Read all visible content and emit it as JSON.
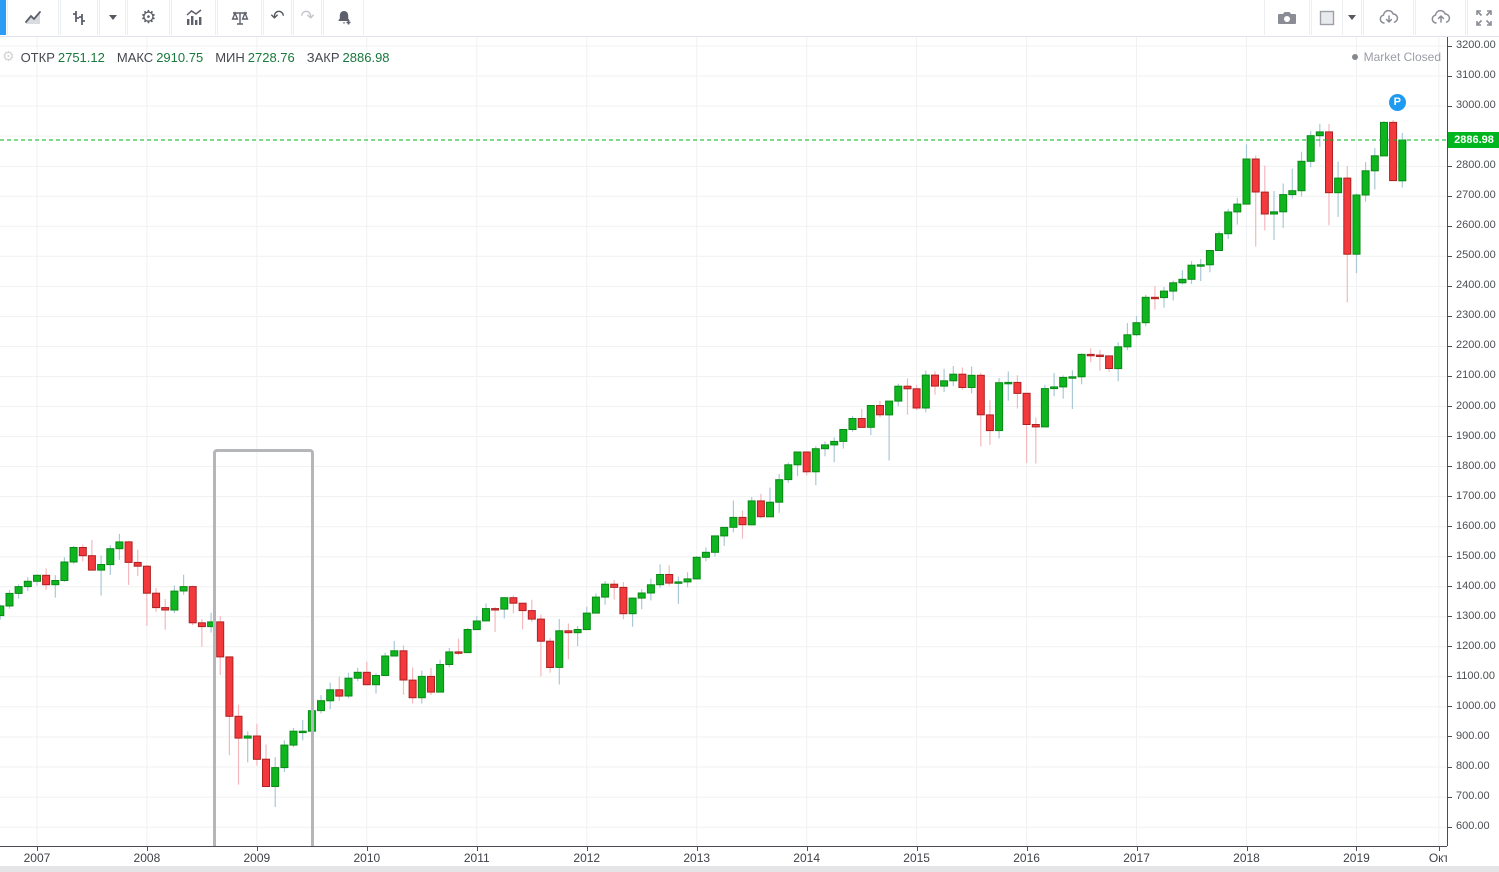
{
  "toolbar": {
    "icons": [
      "symbol",
      "line-chart",
      "chart-style",
      "style-dropdown",
      "settings",
      "indicators",
      "compare",
      "undo",
      "redo",
      "alert",
      "screenshot",
      "layout",
      "layout-dropdown",
      "cloud-load",
      "cloud-save",
      "fullscreen"
    ]
  },
  "legend": {
    "items": [
      {
        "label": "ОТКР",
        "value": "2751.12"
      },
      {
        "label": "МАКС",
        "value": "2910.75"
      },
      {
        "label": "МИН",
        "value": "2728.76"
      },
      {
        "label": "ЗАКР",
        "value": "2886.98"
      }
    ]
  },
  "status": {
    "market_closed": "Market Closed"
  },
  "price_axis": {
    "ticks": [
      "3200.00",
      "3100.00",
      "3000.00",
      "2900.00",
      "2800.00",
      "2700.00",
      "2600.00",
      "2500.00",
      "2400.00",
      "2300.00",
      "2200.00",
      "2100.00",
      "2000.00",
      "1900.00",
      "1800.00",
      "1700.00",
      "1600.00",
      "1500.00",
      "1400.00",
      "1300.00",
      "1200.00",
      "1100.00",
      "1000.00",
      "900.00",
      "800.00",
      "700.00",
      "600.00"
    ],
    "current_price_label": "2886.98"
  },
  "time_axis": {
    "ticks": [
      {
        "label": "2007",
        "m": 4
      },
      {
        "label": "2008",
        "m": 16
      },
      {
        "label": "2009",
        "m": 28
      },
      {
        "label": "2010",
        "m": 40
      },
      {
        "label": "2011",
        "m": 52
      },
      {
        "label": "2012",
        "m": 64
      },
      {
        "label": "2013",
        "m": 76
      },
      {
        "label": "2014",
        "m": 88
      },
      {
        "label": "2015",
        "m": 100
      },
      {
        "label": "2016",
        "m": 112
      },
      {
        "label": "2017",
        "m": 124
      },
      {
        "label": "2018",
        "m": 136
      },
      {
        "label": "2019",
        "m": 148
      },
      {
        "label": "Окт",
        "m": 157
      }
    ]
  },
  "colors": {
    "up": "#0eb51e",
    "up_border": "#098a16",
    "up_wick": "#a9c9d6",
    "down": "#f4393d",
    "down_border": "#ad2122",
    "down_wick": "#f5b8bc",
    "price_line": "#00b61e",
    "price_label_bg": "#00b61e",
    "grid": "#f0f1f2",
    "axis_line": "#4a4d57",
    "marker_blue": "#1e9bf0"
  },
  "annotations": {
    "selection_box": {
      "time_start": "2008-08",
      "time_end": "2009-07",
      "price_top": 1858,
      "price_bottom": 497
    },
    "marker": {
      "label": "P",
      "time": "2019-06",
      "price": 3012
    }
  },
  "chart_data": {
    "type": "candlestick",
    "interval": "1M",
    "ylim": [
      600,
      3200
    ],
    "grid": true,
    "current_price": 2886.98,
    "ohlc_legend": {
      "open": 2751.12,
      "high": 2910.75,
      "low": 2728.76,
      "close": 2886.98
    },
    "candles": [
      [
        "2006-09",
        1303.8,
        1340.3,
        1290.9,
        1335.9
      ],
      [
        "2006-10",
        1335.9,
        1389.5,
        1327.1,
        1377.9
      ],
      [
        "2006-11",
        1377.9,
        1407.9,
        1360.3,
        1400.6
      ],
      [
        "2006-12",
        1400.6,
        1431.8,
        1385.9,
        1418.3
      ],
      [
        "2007-01",
        1418.3,
        1441.6,
        1403.4,
        1438.2
      ],
      [
        "2007-02",
        1438.2,
        1461.6,
        1389.4,
        1406.8
      ],
      [
        "2007-03",
        1406.8,
        1438.9,
        1363.9,
        1420.9
      ],
      [
        "2007-04",
        1420.9,
        1498.0,
        1416.4,
        1482.4
      ],
      [
        "2007-05",
        1482.4,
        1535.6,
        1476.7,
        1530.6
      ],
      [
        "2007-06",
        1530.6,
        1540.6,
        1484.2,
        1503.3
      ],
      [
        "2007-07",
        1503.3,
        1555.9,
        1454.3,
        1455.3
      ],
      [
        "2007-08",
        1455.3,
        1503.9,
        1370.6,
        1474.0
      ],
      [
        "2007-09",
        1474.0,
        1538.7,
        1439.3,
        1526.8
      ],
      [
        "2007-10",
        1526.8,
        1576.1,
        1489.6,
        1549.4
      ],
      [
        "2007-11",
        1549.4,
        1552.8,
        1406.1,
        1481.1
      ],
      [
        "2007-12",
        1481.1,
        1523.6,
        1435.6,
        1468.4
      ],
      [
        "2008-01",
        1468.4,
        1471.8,
        1270.0,
        1378.6
      ],
      [
        "2008-02",
        1378.6,
        1396.0,
        1316.8,
        1330.6
      ],
      [
        "2008-03",
        1330.6,
        1359.7,
        1256.9,
        1322.7
      ],
      [
        "2008-04",
        1322.7,
        1404.6,
        1312.8,
        1385.6
      ],
      [
        "2008-05",
        1385.6,
        1440.2,
        1373.1,
        1400.4
      ],
      [
        "2008-06",
        1400.4,
        1404.0,
        1272.0,
        1280.0
      ],
      [
        "2008-07",
        1280.0,
        1292.2,
        1200.4,
        1267.4
      ],
      [
        "2008-08",
        1267.4,
        1313.2,
        1247.4,
        1283.0
      ],
      [
        "2008-09",
        1283.0,
        1303.0,
        1106.4,
        1166.4
      ],
      [
        "2008-10",
        1166.4,
        1167.0,
        839.8,
        968.8
      ],
      [
        "2008-11",
        968.8,
        1007.5,
        741.0,
        896.2
      ],
      [
        "2008-12",
        896.2,
        918.9,
        815.7,
        903.3
      ],
      [
        "2009-01",
        903.3,
        943.9,
        804.3,
        825.9
      ],
      [
        "2009-02",
        825.9,
        875.0,
        734.5,
        735.1
      ],
      [
        "2009-03",
        735.1,
        833.0,
        666.8,
        797.9
      ],
      [
        "2009-04",
        797.9,
        888.7,
        783.3,
        872.8
      ],
      [
        "2009-05",
        872.8,
        930.2,
        866.1,
        919.1
      ],
      [
        "2009-06",
        919.1,
        956.2,
        888.9,
        919.3
      ],
      [
        "2009-07",
        919.3,
        996.7,
        869.3,
        987.5
      ],
      [
        "2009-08",
        987.5,
        1039.5,
        978.5,
        1020.6
      ],
      [
        "2009-09",
        1020.6,
        1080.2,
        992.0,
        1057.1
      ],
      [
        "2009-10",
        1057.1,
        1101.4,
        1019.9,
        1036.2
      ],
      [
        "2009-11",
        1036.2,
        1113.7,
        1029.4,
        1095.6
      ],
      [
        "2009-12",
        1095.6,
        1130.4,
        1085.9,
        1115.1
      ],
      [
        "2010-01",
        1115.1,
        1150.5,
        1071.6,
        1073.9
      ],
      [
        "2010-02",
        1073.9,
        1112.4,
        1044.5,
        1104.5
      ],
      [
        "2010-03",
        1104.5,
        1180.7,
        1102.0,
        1169.4
      ],
      [
        "2010-04",
        1169.4,
        1219.8,
        1168.0,
        1186.7
      ],
      [
        "2010-05",
        1186.7,
        1205.1,
        1040.8,
        1089.4
      ],
      [
        "2010-06",
        1089.4,
        1131.2,
        1010.9,
        1030.7
      ],
      [
        "2010-07",
        1030.7,
        1121.0,
        1010.9,
        1101.6
      ],
      [
        "2010-08",
        1101.6,
        1129.2,
        1039.7,
        1049.3
      ],
      [
        "2010-09",
        1049.3,
        1157.2,
        1049.3,
        1141.2
      ],
      [
        "2010-10",
        1141.2,
        1196.1,
        1131.9,
        1183.3
      ],
      [
        "2010-11",
        1183.3,
        1227.1,
        1173.0,
        1180.6
      ],
      [
        "2010-12",
        1180.6,
        1262.6,
        1180.6,
        1257.6
      ],
      [
        "2011-01",
        1257.6,
        1302.7,
        1257.6,
        1286.1
      ],
      [
        "2011-02",
        1286.1,
        1344.1,
        1286.1,
        1327.2
      ],
      [
        "2011-03",
        1327.2,
        1332.3,
        1249.0,
        1325.8
      ],
      [
        "2011-04",
        1325.8,
        1364.6,
        1294.7,
        1363.6
      ],
      [
        "2011-05",
        1363.6,
        1370.6,
        1311.8,
        1345.2
      ],
      [
        "2011-06",
        1345.2,
        1345.2,
        1258.1,
        1320.6
      ],
      [
        "2011-07",
        1320.6,
        1356.5,
        1282.9,
        1292.3
      ],
      [
        "2011-08",
        1292.3,
        1307.4,
        1101.5,
        1218.9
      ],
      [
        "2011-09",
        1218.9,
        1229.3,
        1114.2,
        1131.4
      ],
      [
        "2011-10",
        1131.4,
        1292.7,
        1074.8,
        1253.3
      ],
      [
        "2011-11",
        1253.3,
        1277.6,
        1158.7,
        1247.0
      ],
      [
        "2011-12",
        1247.0,
        1269.4,
        1202.4,
        1257.6
      ],
      [
        "2012-01",
        1257.6,
        1333.5,
        1257.6,
        1312.4
      ],
      [
        "2012-02",
        1312.4,
        1378.0,
        1312.4,
        1365.7
      ],
      [
        "2012-03",
        1365.7,
        1419.2,
        1340.0,
        1408.5
      ],
      [
        "2012-04",
        1408.5,
        1422.4,
        1357.4,
        1397.9
      ],
      [
        "2012-05",
        1397.9,
        1415.3,
        1292.0,
        1310.3
      ],
      [
        "2012-06",
        1310.3,
        1363.5,
        1266.7,
        1362.2
      ],
      [
        "2012-07",
        1362.2,
        1391.7,
        1325.4,
        1379.3
      ],
      [
        "2012-08",
        1379.3,
        1426.7,
        1354.7,
        1406.6
      ],
      [
        "2012-09",
        1406.6,
        1474.5,
        1396.6,
        1440.7
      ],
      [
        "2012-10",
        1440.7,
        1471.0,
        1403.3,
        1412.2
      ],
      [
        "2012-11",
        1412.2,
        1434.3,
        1343.4,
        1416.2
      ],
      [
        "2012-12",
        1416.2,
        1448.0,
        1398.2,
        1426.2
      ],
      [
        "2013-01",
        1426.2,
        1502.3,
        1426.2,
        1498.1
      ],
      [
        "2013-02",
        1498.1,
        1530.9,
        1485.0,
        1514.7
      ],
      [
        "2013-03",
        1514.7,
        1570.3,
        1501.5,
        1569.2
      ],
      [
        "2013-04",
        1569.2,
        1597.6,
        1536.0,
        1597.6
      ],
      [
        "2013-05",
        1597.6,
        1687.2,
        1581.3,
        1630.7
      ],
      [
        "2013-06",
        1630.7,
        1654.2,
        1560.3,
        1606.3
      ],
      [
        "2013-07",
        1606.3,
        1698.8,
        1604.6,
        1685.7
      ],
      [
        "2013-08",
        1685.7,
        1709.7,
        1627.5,
        1633.0
      ],
      [
        "2013-09",
        1633.0,
        1729.9,
        1633.0,
        1681.6
      ],
      [
        "2013-10",
        1681.6,
        1775.2,
        1646.0,
        1756.5
      ],
      [
        "2013-11",
        1756.5,
        1813.6,
        1746.2,
        1805.8
      ],
      [
        "2013-12",
        1805.8,
        1849.4,
        1768.0,
        1848.4
      ],
      [
        "2014-01",
        1848.4,
        1850.8,
        1770.5,
        1782.6
      ],
      [
        "2014-02",
        1782.6,
        1867.9,
        1737.9,
        1859.5
      ],
      [
        "2014-03",
        1859.5,
        1884.0,
        1834.4,
        1872.3
      ],
      [
        "2014-04",
        1872.3,
        1897.3,
        1814.4,
        1884.0
      ],
      [
        "2014-05",
        1884.0,
        1924.0,
        1859.8,
        1923.6
      ],
      [
        "2014-06",
        1923.6,
        1968.2,
        1916.0,
        1960.2
      ],
      [
        "2014-07",
        1960.2,
        1991.4,
        1930.7,
        1930.7
      ],
      [
        "2014-08",
        1930.7,
        2005.0,
        1904.8,
        2003.4
      ],
      [
        "2014-09",
        2003.4,
        2019.3,
        1964.0,
        1972.3
      ],
      [
        "2014-10",
        1972.3,
        2018.2,
        1820.7,
        2018.1
      ],
      [
        "2014-11",
        2018.1,
        2075.8,
        2001.0,
        2067.6
      ],
      [
        "2014-12",
        2067.6,
        2093.6,
        1972.6,
        2058.9
      ],
      [
        "2015-01",
        2058.9,
        2072.4,
        1988.1,
        1995.0
      ],
      [
        "2015-02",
        1995.0,
        2119.6,
        1980.9,
        2104.5
      ],
      [
        "2015-03",
        2104.5,
        2117.5,
        2039.7,
        2067.9
      ],
      [
        "2015-04",
        2067.9,
        2125.9,
        2048.4,
        2085.5
      ],
      [
        "2015-05",
        2085.5,
        2134.7,
        2067.9,
        2107.4
      ],
      [
        "2015-06",
        2107.4,
        2129.9,
        2056.3,
        2063.1
      ],
      [
        "2015-07",
        2063.1,
        2132.8,
        2044.0,
        2103.8
      ],
      [
        "2015-08",
        2103.8,
        2112.7,
        1867.0,
        1972.2
      ],
      [
        "2015-09",
        1972.2,
        2020.9,
        1871.9,
        1920.0
      ],
      [
        "2015-10",
        1920.0,
        2094.3,
        1893.7,
        2079.4
      ],
      [
        "2015-11",
        2079.4,
        2116.5,
        2019.4,
        2080.4
      ],
      [
        "2015-12",
        2080.4,
        2104.3,
        1993.3,
        2043.9
      ],
      [
        "2016-01",
        2043.9,
        2043.9,
        1812.3,
        1940.2
      ],
      [
        "2016-02",
        1940.2,
        1963.0,
        1810.1,
        1932.2
      ],
      [
        "2016-03",
        1932.2,
        2072.2,
        1931.0,
        2059.7
      ],
      [
        "2016-04",
        2059.7,
        2111.1,
        2033.8,
        2065.3
      ],
      [
        "2016-05",
        2065.3,
        2103.5,
        2025.9,
        2097.0
      ],
      [
        "2016-06",
        2097.0,
        2120.6,
        1991.7,
        2098.9
      ],
      [
        "2016-07",
        2098.9,
        2177.1,
        2074.0,
        2173.6
      ],
      [
        "2016-08",
        2173.6,
        2193.8,
        2147.6,
        2171.0
      ],
      [
        "2016-09",
        2171.0,
        2187.9,
        2119.1,
        2168.3
      ],
      [
        "2016-10",
        2168.3,
        2169.6,
        2114.7,
        2126.2
      ],
      [
        "2016-11",
        2126.2,
        2214.1,
        2083.8,
        2198.8
      ],
      [
        "2016-12",
        2198.8,
        2277.5,
        2187.4,
        2238.8
      ],
      [
        "2017-01",
        2238.8,
        2301.0,
        2233.6,
        2278.9
      ],
      [
        "2017-02",
        2278.9,
        2371.5,
        2267.2,
        2363.6
      ],
      [
        "2017-03",
        2363.6,
        2401.0,
        2322.3,
        2362.7
      ],
      [
        "2017-04",
        2362.7,
        2398.2,
        2328.9,
        2384.2
      ],
      [
        "2017-05",
        2384.2,
        2418.7,
        2352.7,
        2411.8
      ],
      [
        "2017-06",
        2411.8,
        2453.8,
        2405.7,
        2423.4
      ],
      [
        "2017-07",
        2423.4,
        2484.0,
        2407.7,
        2470.3
      ],
      [
        "2017-08",
        2470.3,
        2490.9,
        2417.4,
        2471.7
      ],
      [
        "2017-09",
        2471.7,
        2519.4,
        2446.6,
        2519.4
      ],
      [
        "2017-10",
        2519.4,
        2583.0,
        2519.4,
        2575.3
      ],
      [
        "2017-11",
        2575.3,
        2657.7,
        2557.4,
        2647.6
      ],
      [
        "2017-12",
        2647.6,
        2695.0,
        2605.5,
        2673.6
      ],
      [
        "2018-01",
        2673.6,
        2872.9,
        2673.6,
        2823.8
      ],
      [
        "2018-02",
        2823.8,
        2836.0,
        2532.7,
        2713.8
      ],
      [
        "2018-03",
        2713.8,
        2801.9,
        2585.9,
        2640.9
      ],
      [
        "2018-04",
        2640.9,
        2717.5,
        2553.8,
        2648.1
      ],
      [
        "2018-05",
        2648.1,
        2742.2,
        2594.6,
        2705.3
      ],
      [
        "2018-06",
        2705.3,
        2791.5,
        2692.0,
        2718.4
      ],
      [
        "2018-07",
        2718.4,
        2848.0,
        2699.0,
        2816.3
      ],
      [
        "2018-08",
        2816.3,
        2916.5,
        2796.3,
        2901.5
      ],
      [
        "2018-09",
        2901.5,
        2940.9,
        2864.1,
        2914.0
      ],
      [
        "2018-10",
        2914.0,
        2939.9,
        2603.5,
        2711.7
      ],
      [
        "2018-11",
        2711.7,
        2815.2,
        2631.1,
        2760.2
      ],
      [
        "2018-12",
        2760.2,
        2800.2,
        2346.6,
        2506.9
      ],
      [
        "2019-01",
        2506.9,
        2709.0,
        2444.0,
        2704.1
      ],
      [
        "2019-02",
        2704.1,
        2813.5,
        2681.8,
        2784.5
      ],
      [
        "2019-03",
        2784.5,
        2860.3,
        2722.3,
        2834.4
      ],
      [
        "2019-04",
        2834.4,
        2949.5,
        2834.4,
        2945.8
      ],
      [
        "2019-05",
        2945.8,
        2954.1,
        2750.5,
        2752.1
      ],
      [
        "2019-06",
        2751.12,
        2910.75,
        2728.76,
        2886.98
      ]
    ]
  }
}
